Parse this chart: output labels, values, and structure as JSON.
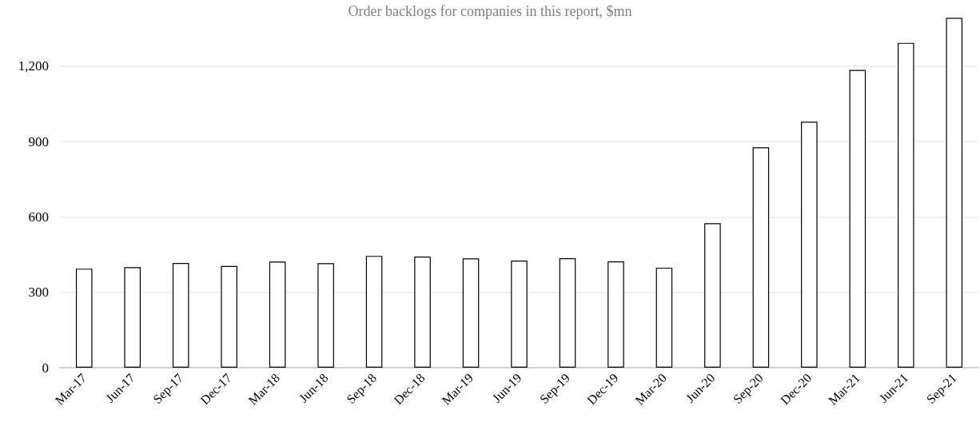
{
  "chart_data": {
    "type": "bar",
    "title": "Order backlogs for companies in this report, $mn",
    "categories": [
      "Mar-17",
      "Jun-17",
      "Sep-17",
      "Dec-17",
      "Mar-18",
      "Jun-18",
      "Sep-18",
      "Dec-18",
      "Mar-19",
      "Jun-19",
      "Sep-19",
      "Dec-19",
      "Mar-20",
      "Jun-20",
      "Sep-20",
      "Dec-20",
      "Mar-21",
      "Jun-21",
      "Sep-21"
    ],
    "values": [
      394,
      400,
      417,
      405,
      422,
      416,
      445,
      442,
      435,
      426,
      436,
      423,
      398,
      575,
      877,
      979,
      1185,
      1293,
      1393
    ],
    "color": "#ffffff",
    "ylim": [
      0,
      1400
    ],
    "yticks": [
      0,
      300,
      600,
      900,
      {
        "value": 1200,
        "label": "1,200"
      }
    ],
    "grid": "y"
  }
}
